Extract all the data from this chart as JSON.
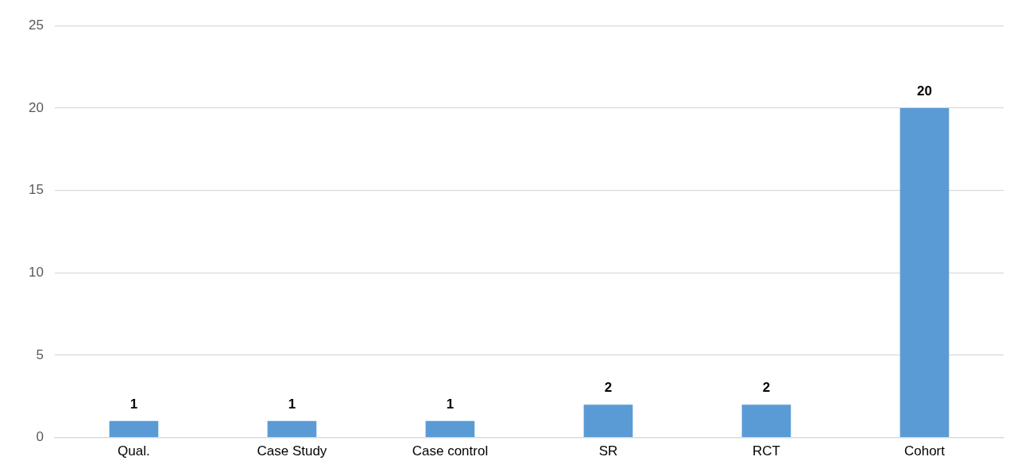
{
  "chart_data": {
    "type": "bar",
    "categories": [
      "Qual.",
      "Case Study",
      "Case control",
      "SR",
      "RCT",
      "Cohort"
    ],
    "values": [
      1,
      1,
      1,
      2,
      2,
      20
    ],
    "color": "#5b9bd5",
    "ylim": [
      0,
      25
    ],
    "yticks": [
      0,
      5,
      10,
      15,
      20,
      25
    ],
    "grid": "y",
    "data_labels": true,
    "legend": false
  }
}
